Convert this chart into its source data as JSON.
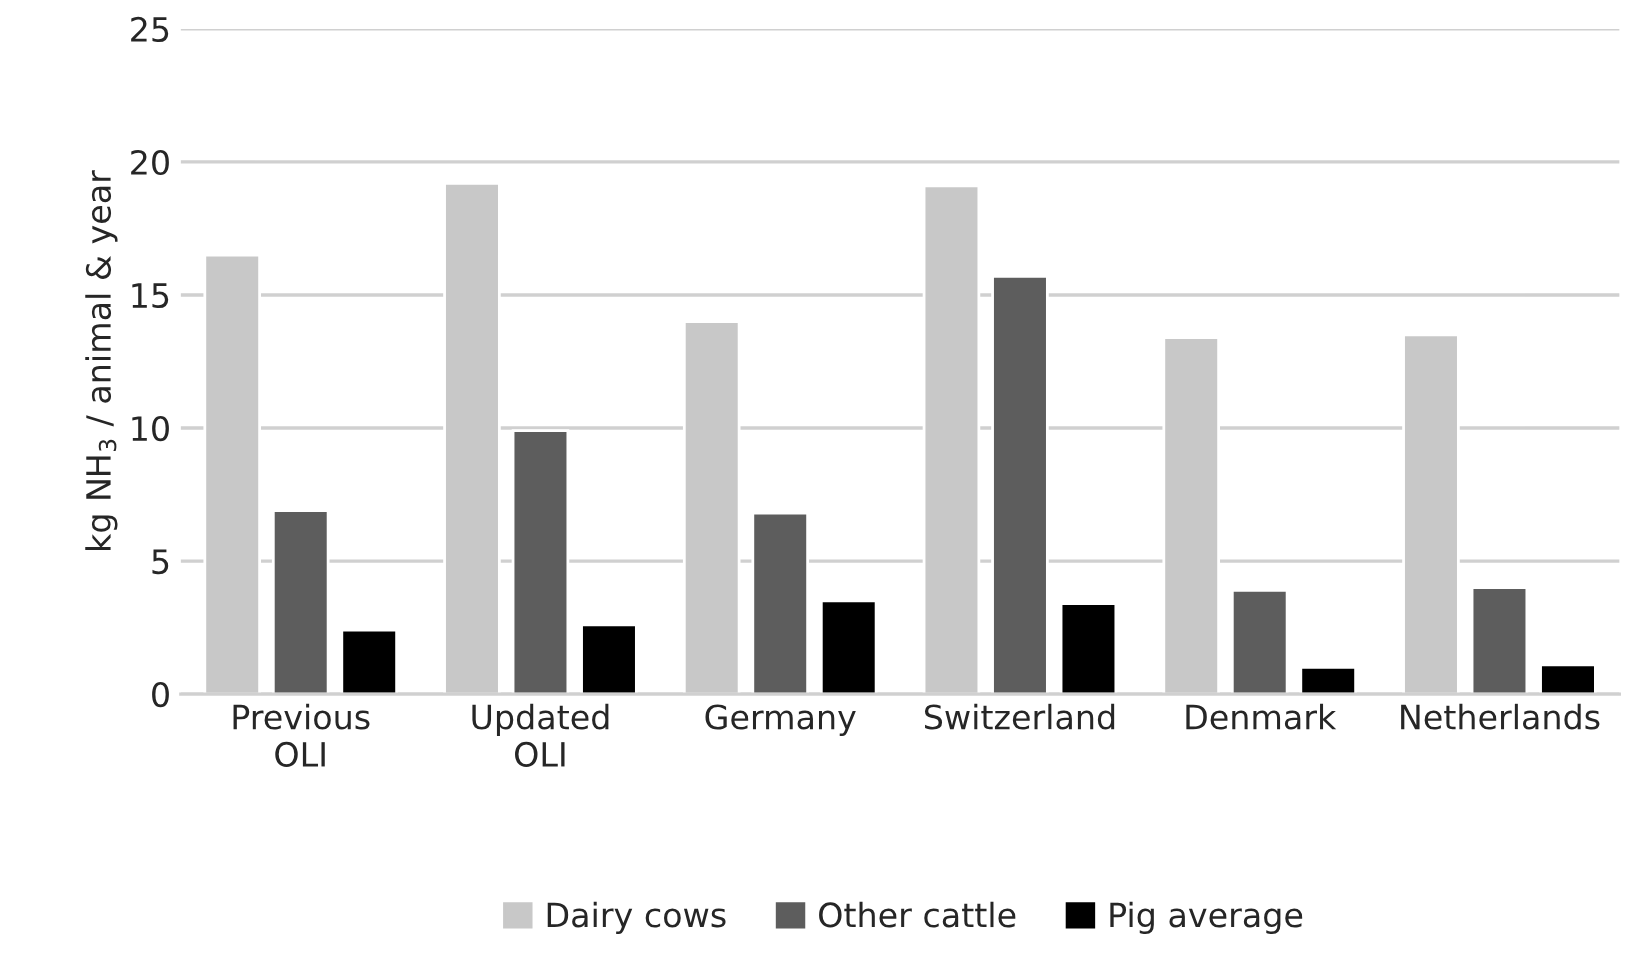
{
  "chart_data": {
    "type": "bar",
    "ylabel": "kg NH$_{3}$ / animal & year",
    "categories": [
      "Previous\nOLI",
      "Updated\nOLI",
      "Germany",
      "Switzerland",
      "Denmark",
      "Netherlands"
    ],
    "series": [
      {
        "name": "Dairy cows",
        "color": "#c8c8c8",
        "values": [
          16.5,
          19.2,
          14.0,
          19.1,
          13.4,
          13.5
        ]
      },
      {
        "name": "Other cattle",
        "color": "#5d5d5d",
        "values": [
          6.9,
          9.9,
          6.8,
          15.7,
          3.9,
          4.0
        ]
      },
      {
        "name": "Pig average",
        "color": "#000000",
        "values": [
          2.4,
          2.6,
          3.5,
          3.4,
          1.0,
          1.1
        ]
      }
    ],
    "ylim": [
      0,
      25
    ],
    "yticks": [
      0,
      5,
      10,
      15,
      20,
      25
    ],
    "grid": "y",
    "legend": "bottom"
  }
}
